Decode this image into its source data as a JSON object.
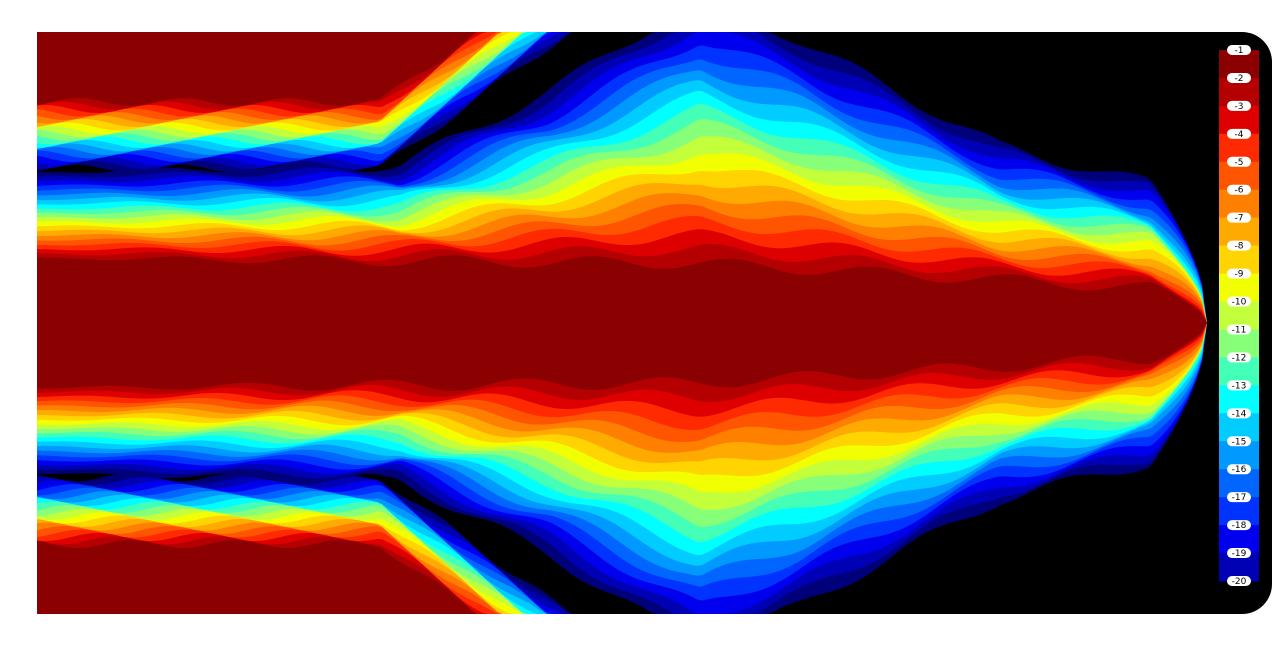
{
  "chart_data": {
    "type": "contour",
    "levels": [
      -1,
      -2,
      -3,
      -4,
      -5,
      -6,
      -7,
      -8,
      -9,
      -10,
      -11,
      -12,
      -13,
      -14,
      -15,
      -16,
      -17,
      -18,
      -19,
      -20
    ],
    "colors": [
      "#8b0000",
      "#b40000",
      "#de0000",
      "#ff2a00",
      "#ff5500",
      "#ff8000",
      "#ffaa00",
      "#ffd400",
      "#f2ff00",
      "#c4ff3c",
      "#88ff78",
      "#44ffb8",
      "#00ffff",
      "#00ccff",
      "#0099ff",
      "#0066ff",
      "#0033ff",
      "#0000ee",
      "#0000b4",
      "#00007a"
    ]
  }
}
